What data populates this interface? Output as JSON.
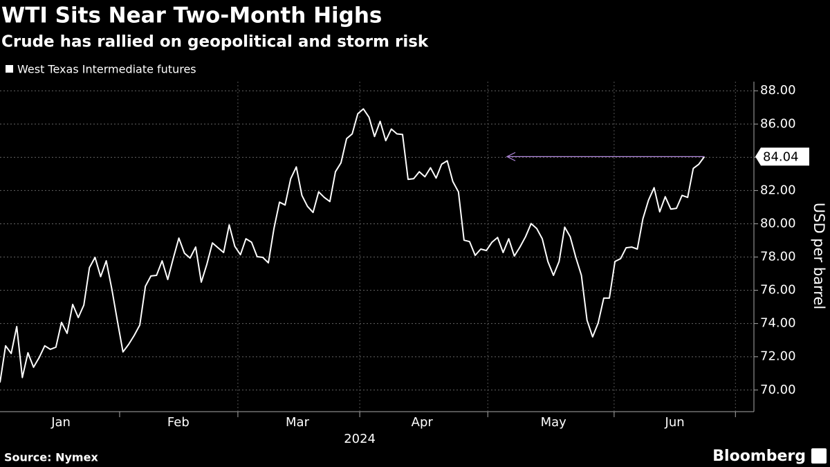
{
  "chart_data": {
    "type": "line",
    "title": "WTI Sits Near Two-Month Highs",
    "subtitle": "Crude has rallied on geopolitical and storm risk",
    "source": "Source: Nymex",
    "brand": "Bloomberg",
    "y_axis_label": "USD per barrel",
    "x_axis_year": "2024",
    "x_labels": [
      {
        "value": 10.9,
        "label": "Jan"
      },
      {
        "value": 31.9,
        "label": "Feb"
      },
      {
        "value": 53.2,
        "label": "Mar"
      },
      {
        "value": 75.5,
        "label": "Apr"
      },
      {
        "value": 99,
        "label": "May"
      },
      {
        "value": 120.7,
        "label": "Jun"
      }
    ],
    "xlim": [
      0,
      133
    ],
    "ylim": [
      68.7,
      88.55
    ],
    "yticks": [
      {
        "value": 70,
        "label": "70.00"
      },
      {
        "value": 72,
        "label": "72.00"
      },
      {
        "value": 74,
        "label": "74.00"
      },
      {
        "value": 76,
        "label": "76.00"
      },
      {
        "value": 78,
        "label": "78.00"
      },
      {
        "value": 80,
        "label": "80.00"
      },
      {
        "value": 82,
        "label": "82.00"
      },
      {
        "value": 84,
        "label": "84.00"
      },
      {
        "value": 86,
        "label": "86.00"
      },
      {
        "value": 88,
        "label": "88.00"
      }
    ],
    "grid": true,
    "series": [
      {
        "name": "West Texas Intermediate futures",
        "color": "#ffffff",
        "values": [
          70.45,
          72.66,
          72.2,
          73.82,
          70.75,
          72.24,
          71.37,
          71.95,
          72.66,
          72.45,
          72.58,
          74.07,
          73.41,
          75.15,
          74.36,
          75.11,
          77.36,
          77.98,
          76.82,
          77.77,
          76.07,
          74.16,
          72.29,
          72.74,
          73.28,
          73.91,
          76.24,
          76.86,
          76.9,
          77.77,
          76.65,
          77.94,
          79.14,
          78.23,
          77.94,
          78.6,
          76.49,
          77.57,
          78.85,
          78.56,
          78.27,
          79.93,
          78.64,
          78.14,
          79.1,
          78.89,
          78.02,
          77.98,
          77.65,
          79.72,
          81.3,
          81.13,
          82.71,
          83.42,
          81.71,
          81.05,
          80.68,
          81.92,
          81.59,
          81.34,
          83.13,
          83.67,
          85.12,
          85.41,
          86.62,
          86.91,
          86.41,
          85.25,
          86.16,
          85.0,
          85.7,
          85.41,
          85.37,
          82.67,
          82.71,
          83.13,
          82.83,
          83.37,
          82.75,
          83.58,
          83.79,
          82.54,
          81.92,
          79.01,
          78.93,
          78.1,
          78.48,
          78.39,
          78.89,
          79.18,
          78.27,
          79.1,
          78.06,
          78.6,
          79.22,
          80.01,
          79.72,
          79.1,
          77.73,
          76.9,
          77.73,
          79.8,
          79.22,
          77.98,
          76.9,
          74.2,
          73.2,
          74.03,
          75.53,
          75.53,
          77.73,
          77.9,
          78.56,
          78.6,
          78.48,
          80.3,
          81.42,
          82.17,
          80.72,
          81.63,
          80.88,
          80.93,
          81.71,
          81.59,
          83.33,
          83.58,
          84.04
        ]
      }
    ],
    "annotation_color": "#b58ce0"
  }
}
